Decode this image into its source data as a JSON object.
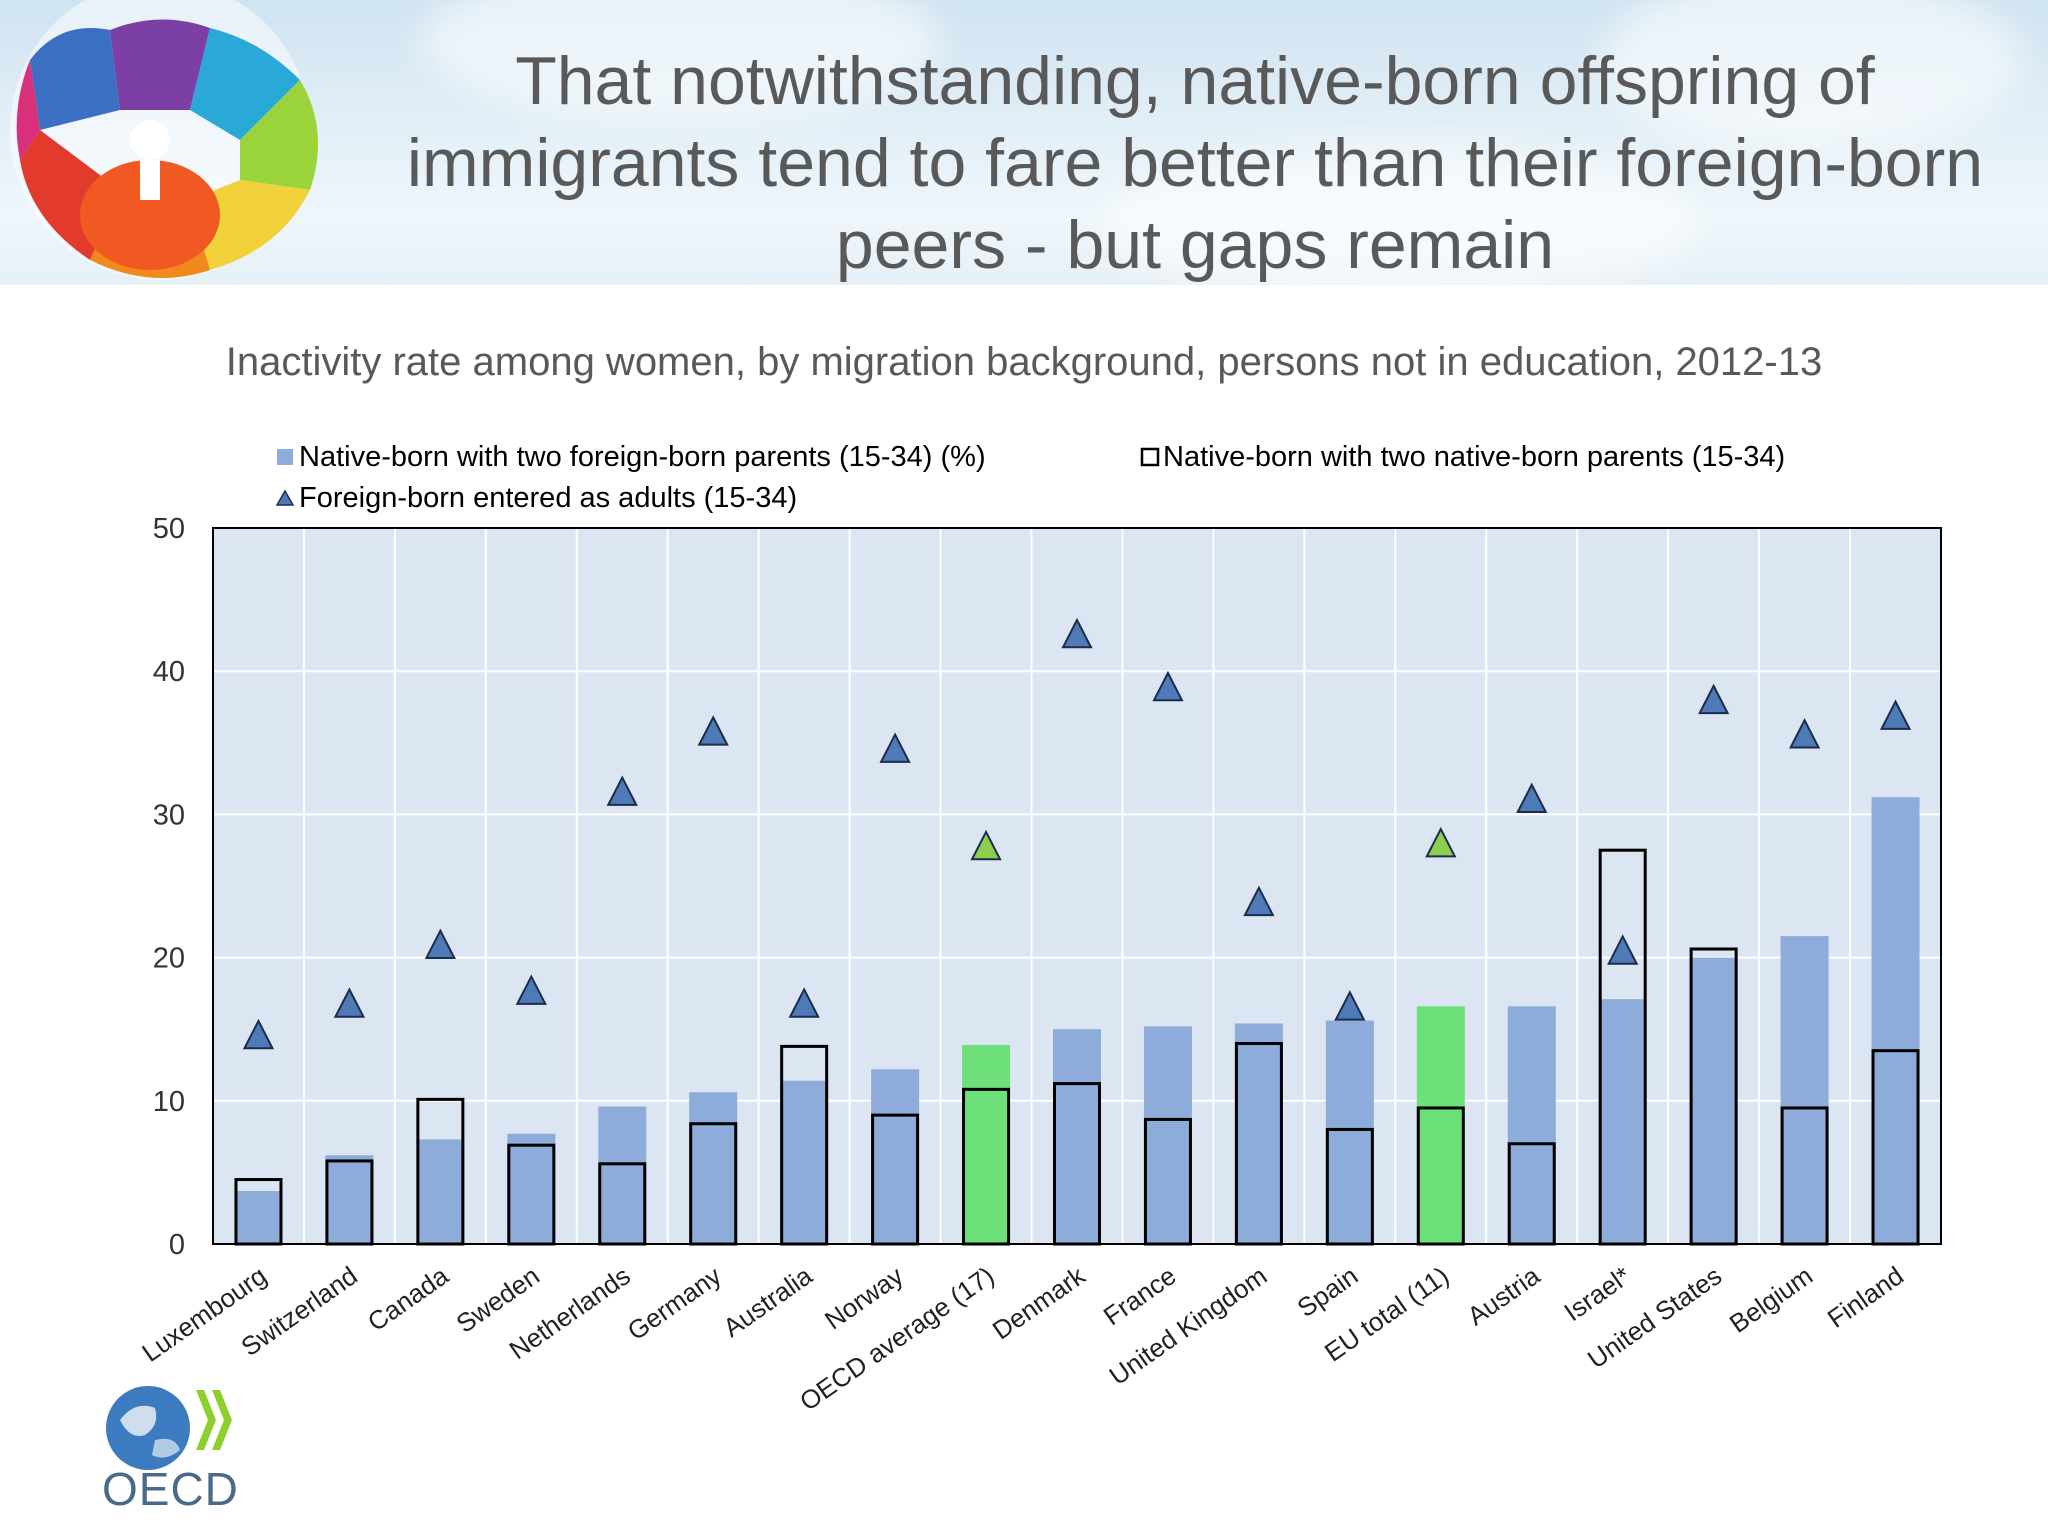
{
  "header": {
    "title": "That notwithstanding, native-born offspring of immigrants tend to fare better than their foreign-born peers - but gaps remain"
  },
  "chart_data": {
    "type": "bar",
    "subtitle": "Inactivity rate among women, by migration background, persons not in education, 2012-13",
    "categories": [
      "Luxembourg",
      "Switzerland",
      "Canada",
      "Sweden",
      "Netherlands",
      "Germany",
      "Australia",
      "Norway",
      "OECD average (17)",
      "Denmark",
      "France",
      "United Kingdom",
      "Spain",
      "EU total (11)",
      "Austria",
      "Israel*",
      "United States",
      "Belgium",
      "Finland"
    ],
    "highlight_categories": [
      "OECD average (17)",
      "EU total (11)"
    ],
    "series": [
      {
        "name": "Native-born with two foreign-born parents (15-34) (%)",
        "mark": "bar",
        "values": [
          3.7,
          6.2,
          7.3,
          7.7,
          9.6,
          10.6,
          11.4,
          12.2,
          13.9,
          15.0,
          15.2,
          15.4,
          15.6,
          16.6,
          16.6,
          17.1,
          20.0,
          21.5,
          31.2
        ]
      },
      {
        "name": "Native-born with two native-born parents (15-34)",
        "mark": "outline-bar",
        "values": [
          4.5,
          5.8,
          10.1,
          6.9,
          5.6,
          8.4,
          13.8,
          9.0,
          10.8,
          11.2,
          8.7,
          14.0,
          8.0,
          9.5,
          7.0,
          27.5,
          20.6,
          9.5,
          13.5
        ]
      },
      {
        "name": "Foreign-born entered as adults (15-34)",
        "mark": "triangle",
        "values": [
          14.5,
          16.7,
          20.8,
          17.6,
          31.5,
          35.7,
          16.7,
          34.5,
          27.7,
          42.5,
          38.8,
          23.8,
          16.5,
          27.9,
          31.0,
          20.4,
          37.9,
          35.5,
          36.8
        ]
      }
    ],
    "ylim": [
      0,
      50
    ],
    "yticks": [
      0,
      10,
      20,
      30,
      40,
      50
    ],
    "grid": true,
    "legend_position": "top-left",
    "colors": {
      "bar": "#8eacd9",
      "bar_highlight": "#6ee07a",
      "triangle": "#4e7ab8",
      "triangle_highlight": "#8ccf4f",
      "plot_bg": "#dce5f2",
      "outline": "#000000"
    }
  },
  "logo": {
    "text": "OECD"
  }
}
